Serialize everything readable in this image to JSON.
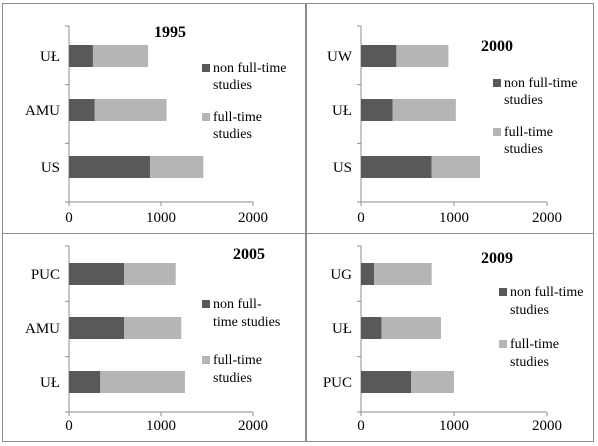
{
  "colors": {
    "non_full_time": "#595959",
    "full_time": "#b5b5b5",
    "axis": "#8c8c8c"
  },
  "chart_data": [
    {
      "type": "bar",
      "orientation": "horizontal",
      "stacked": true,
      "title": "1995",
      "categories": [
        "UŁ",
        "AMU",
        "US"
      ],
      "series": [
        {
          "name": "non full-time studies",
          "values": [
            260,
            280,
            880
          ]
        },
        {
          "name": "full-time studies",
          "values": [
            600,
            780,
            580
          ]
        }
      ],
      "xlim": [
        0,
        2000
      ],
      "xticks": [
        "0",
        "1000",
        "2000"
      ],
      "legend_lines": [
        [
          "non full-time",
          "studies"
        ],
        [
          "full-time",
          "studies"
        ]
      ]
    },
    {
      "type": "bar",
      "orientation": "horizontal",
      "stacked": true,
      "title": "2000",
      "categories": [
        "UW",
        "UŁ",
        "US"
      ],
      "series": [
        {
          "name": "non full-time studies",
          "values": [
            380,
            340,
            760
          ]
        },
        {
          "name": "full-time studies",
          "values": [
            560,
            680,
            520
          ]
        }
      ],
      "xlim": [
        0,
        2000
      ],
      "xticks": [
        "0",
        "1000",
        "2000"
      ],
      "legend_lines": [
        [
          "non full-time",
          "studies"
        ],
        [
          "full-time",
          "studies"
        ]
      ]
    },
    {
      "type": "bar",
      "orientation": "horizontal",
      "stacked": true,
      "title": "2005",
      "categories": [
        "PUC",
        "AMU",
        "UŁ"
      ],
      "series": [
        {
          "name": "non full-time studies",
          "values": [
            600,
            600,
            340
          ]
        },
        {
          "name": "full-time studies",
          "values": [
            560,
            620,
            920
          ]
        }
      ],
      "xlim": [
        0,
        2000
      ],
      "xticks": [
        "0",
        "1000",
        "2000"
      ],
      "legend_lines": [
        [
          "non full-",
          "time studies"
        ],
        [
          "full-time",
          "studies"
        ]
      ]
    },
    {
      "type": "bar",
      "orientation": "horizontal",
      "stacked": true,
      "title": "2009",
      "categories": [
        "UG",
        "UŁ",
        "PUC"
      ],
      "series": [
        {
          "name": "non full-time studies",
          "values": [
            140,
            220,
            540
          ]
        },
        {
          "name": "full-time studies",
          "values": [
            620,
            640,
            460
          ]
        }
      ],
      "xlim": [
        0,
        2000
      ],
      "xticks": [
        "0",
        "1000",
        "2000"
      ],
      "legend_lines": [
        [
          "non full-time",
          "studies"
        ],
        [
          "full-time",
          "studies"
        ]
      ]
    }
  ]
}
